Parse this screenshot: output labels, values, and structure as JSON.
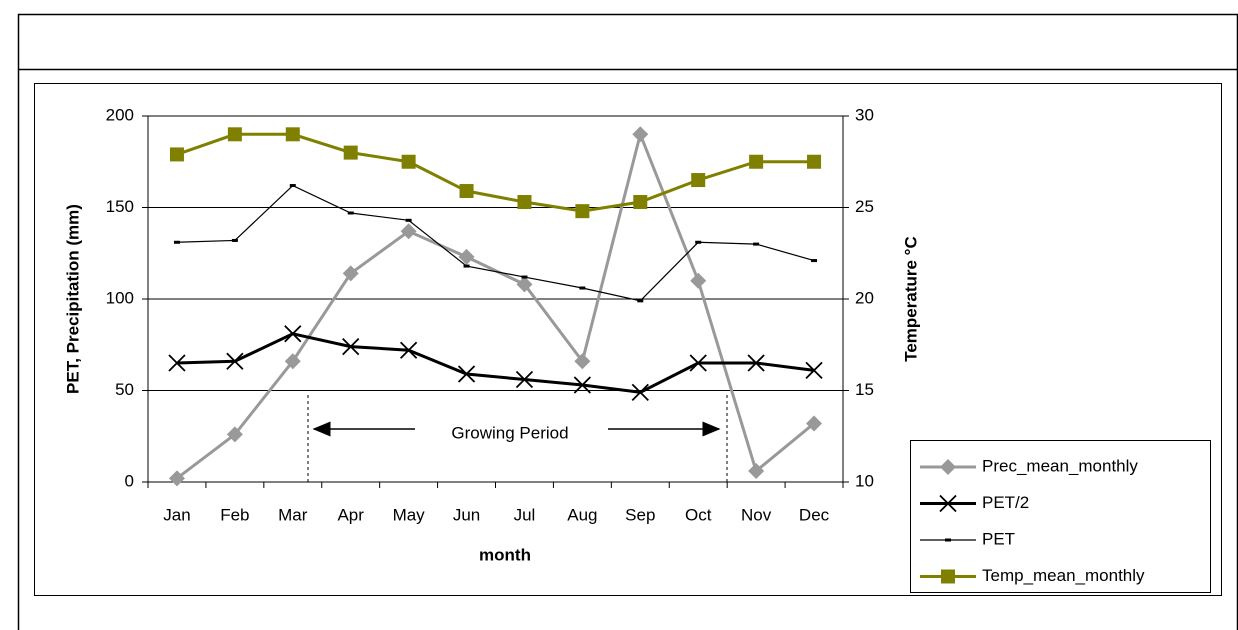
{
  "chart_data": {
    "type": "line",
    "x_label": "month",
    "y_label": "PET, Precipitation (mm)",
    "y2_label": "Temperature °C",
    "categories": [
      "Jan",
      "Feb",
      "Mar",
      "Apr",
      "May",
      "Jun",
      "Jul",
      "Aug",
      "Sep",
      "Oct",
      "Nov",
      "Dec"
    ],
    "ylim": [
      0,
      200
    ],
    "yticks": [
      0,
      50,
      100,
      150,
      200
    ],
    "y2lim": [
      10,
      30
    ],
    "y2ticks": [
      10,
      15,
      20,
      25,
      30
    ],
    "grid": true,
    "legend": "lower right",
    "annotation": "Growing Period",
    "series": [
      {
        "name": "Prec_mean_monthly",
        "color": "#999999",
        "marker": "diamond",
        "width": 3,
        "values": [
          2,
          26,
          66,
          114,
          137,
          123,
          108,
          66,
          190,
          110,
          6,
          32
        ]
      },
      {
        "name": "PET/2",
        "color": "#000000",
        "marker": "x",
        "width": 3,
        "values": [
          65,
          66,
          81,
          74,
          72,
          59,
          56,
          53,
          49,
          65,
          65,
          61
        ]
      },
      {
        "name": "PET",
        "color": "#000000",
        "marker": "dash",
        "width": 1.2,
        "values": [
          131,
          132,
          162,
          147,
          143,
          118,
          112,
          106,
          99,
          131,
          130,
          121
        ]
      },
      {
        "name": "Temp_mean_monthly",
        "color": "#808000",
        "marker": "square",
        "width": 3,
        "axis": "y2",
        "values": [
          27.9,
          29.0,
          29.0,
          28.0,
          27.5,
          25.9,
          25.3,
          24.8,
          25.3,
          26.5,
          27.5,
          27.5
        ]
      }
    ]
  }
}
